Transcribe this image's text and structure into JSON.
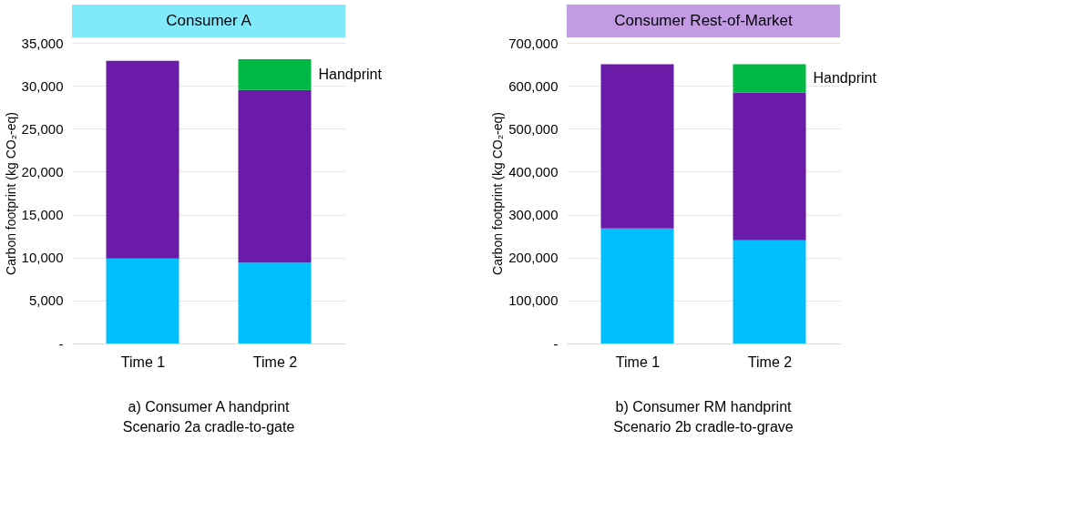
{
  "chart_data": [
    {
      "type": "bar",
      "title": "Consumer A",
      "categories": [
        "Time 1",
        "Time 2"
      ],
      "stacked": true,
      "ylabel": "Carbon footprint (kg CO₂-eq)",
      "ylim": [
        0,
        35000
      ],
      "yticks": [
        {
          "value": 0,
          "label": "-"
        },
        {
          "value": 5000,
          "label": "5,000"
        },
        {
          "value": 10000,
          "label": "10,000"
        },
        {
          "value": 15000,
          "label": "15,000"
        },
        {
          "value": 20000,
          "label": "20,000"
        },
        {
          "value": 25000,
          "label": "25,000"
        },
        {
          "value": 30000,
          "label": "30,000"
        },
        {
          "value": 35000,
          "label": "35,000"
        }
      ],
      "grid": "y",
      "series": [
        {
          "color": "#00bfff",
          "values": [
            9900,
            9400
          ]
        },
        {
          "color": "#6a1ba8",
          "values": [
            23000,
            20100
          ]
        },
        {
          "color": "#00b945",
          "values": [
            null,
            3600
          ]
        }
      ],
      "annotations": [
        "Handprint",
        "a) Consumer A handprint",
        "Scenario 2a cradle-to-gate"
      ]
    },
    {
      "type": "bar",
      "title": "Consumer Rest-of-Market",
      "categories": [
        "Time 1",
        "Time 2"
      ],
      "stacked": true,
      "ylabel": "Carbon footprint (kg CO₂-eq)",
      "ylim": [
        0,
        700000
      ],
      "yticks": [
        {
          "value": 0,
          "label": "-"
        },
        {
          "value": 100000,
          "label": "100,000"
        },
        {
          "value": 200000,
          "label": "200,000"
        },
        {
          "value": 300000,
          "label": "300,000"
        },
        {
          "value": 400000,
          "label": "400,000"
        },
        {
          "value": 500000,
          "label": "500,000"
        },
        {
          "value": 600000,
          "label": "600,000"
        },
        {
          "value": 700000,
          "label": "700,000"
        }
      ],
      "grid": "y",
      "series": [
        {
          "color": "#00bfff",
          "values": [
            268000,
            240000
          ]
        },
        {
          "color": "#6a1ba8",
          "values": [
            382000,
            344000
          ]
        },
        {
          "color": "#00b945",
          "values": [
            null,
            66000
          ]
        }
      ],
      "annotations": [
        "Handprint",
        "b)  Consumer RM handprint",
        "Scenario 2b cradle-to-grave"
      ]
    }
  ]
}
